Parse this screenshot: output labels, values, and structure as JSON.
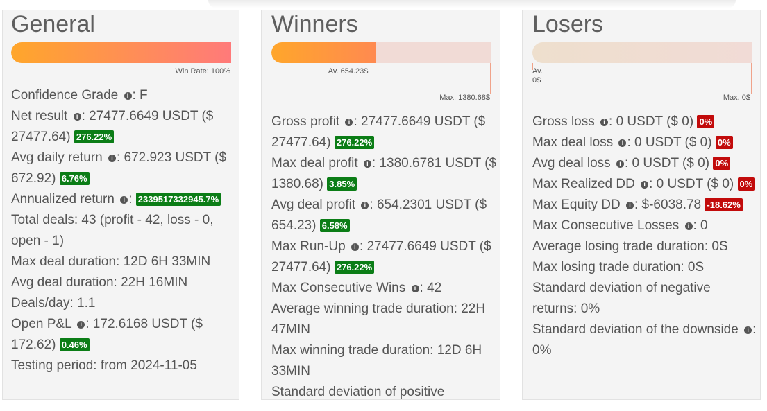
{
  "colors": {
    "bar_gradient_start": "#ffa62b",
    "bar_gradient_end": "#ff7a7a",
    "bar_track": "#f1dbd6",
    "winners_fill": "#ff8a50",
    "losers_track": "#eedfcd",
    "positive_badge": "#0b7d16",
    "negative_badge": "#c20b0b"
  },
  "general": {
    "title": "General",
    "win_rate_label": "Win Rate: 100%",
    "win_rate_fraction": 1.0,
    "confidence_label": "Confidence Grade",
    "confidence_value": ": F",
    "net_result_label": "Net result",
    "net_result_value": ": 27477.6649 USDT ($ 27477.64)",
    "net_result_pct": "276.22%",
    "avg_daily_label": "Avg daily return",
    "avg_daily_value": ": 672.923 USDT ($ 672.92)",
    "avg_daily_pct": "6.76%",
    "annualized_label": "Annualized return",
    "annualized_value": ":",
    "annualized_pct": "2339517332945.7%",
    "total_deals": "Total deals: 43 (profit - 42, loss - 0, open - 1)",
    "max_deal_duration": "Max deal duration: 12D 6H 33MIN",
    "avg_deal_duration": "Avg deal duration: 22H 16MIN",
    "deals_per_day": "Deals/day: 1.1",
    "open_pl_label": "Open P&L",
    "open_pl_value": ": 172.6168 USDT ($ 172.62)",
    "open_pl_pct": "0.46%",
    "testing_period": "Testing period: from 2024-11-05"
  },
  "winners": {
    "title": "Winners",
    "avg_label": "Av. 654.23$",
    "max_label": "Max. 1380.68$",
    "avg_fraction": 0.4738,
    "gross_profit_label": "Gross profit",
    "gross_profit_value": ": 27477.6649 USDT ($ 27477.64)",
    "gross_profit_pct": "276.22%",
    "max_deal_profit_label": "Max deal profit",
    "max_deal_profit_value": ": 1380.6781 USDT ($ 1380.68)",
    "max_deal_profit_pct": "3.85%",
    "avg_deal_profit_label": "Avg deal profit",
    "avg_deal_profit_value": ": 654.2301 USDT ($ 654.23)",
    "avg_deal_profit_pct": "6.58%",
    "max_runup_label": "Max Run-Up",
    "max_runup_value": ": 27477.6649 USDT ($ 27477.64)",
    "max_runup_pct": "276.22%",
    "max_consec_wins_label": "Max Consecutive Wins",
    "max_consec_wins_value": ": 42",
    "avg_win_duration": "Average winning trade duration: 22H 47MIN",
    "max_win_duration": "Max winning trade duration: 12D 6H 33MIN",
    "std_positive": "Standard deviation of positive"
  },
  "losers": {
    "title": "Losers",
    "avg_label_1": "Av.",
    "avg_label_2": "0$",
    "max_label": "Max. 0$",
    "gross_loss_label": "Gross loss",
    "gross_loss_value": ": 0 USDT ($ 0)",
    "gross_loss_pct": "0%",
    "max_deal_loss_label": "Max deal loss",
    "max_deal_loss_value": ": 0 USDT ($ 0)",
    "max_deal_loss_pct": "0%",
    "avg_deal_loss_label": "Avg deal loss",
    "avg_deal_loss_value": ": 0 USDT ($ 0)",
    "avg_deal_loss_pct": "0%",
    "max_realized_dd_label": "Max Realized DD",
    "max_realized_dd_value": ": 0 USDT ($ 0)",
    "max_realized_dd_pct": "0%",
    "max_equity_dd_label": "Max Equity DD",
    "max_equity_dd_value": ": $-6038.78",
    "max_equity_dd_pct": "-18.62%",
    "max_consec_losses_label": "Max Consecutive Losses",
    "max_consec_losses_value": ": 0",
    "avg_lose_duration": "Average losing trade duration: 0S",
    "max_lose_duration": "Max losing trade duration: 0S",
    "std_negative": "Standard deviation of negative returns: 0%",
    "std_downside_label": "Standard deviation of the downside",
    "std_downside_value": ": 0%"
  }
}
